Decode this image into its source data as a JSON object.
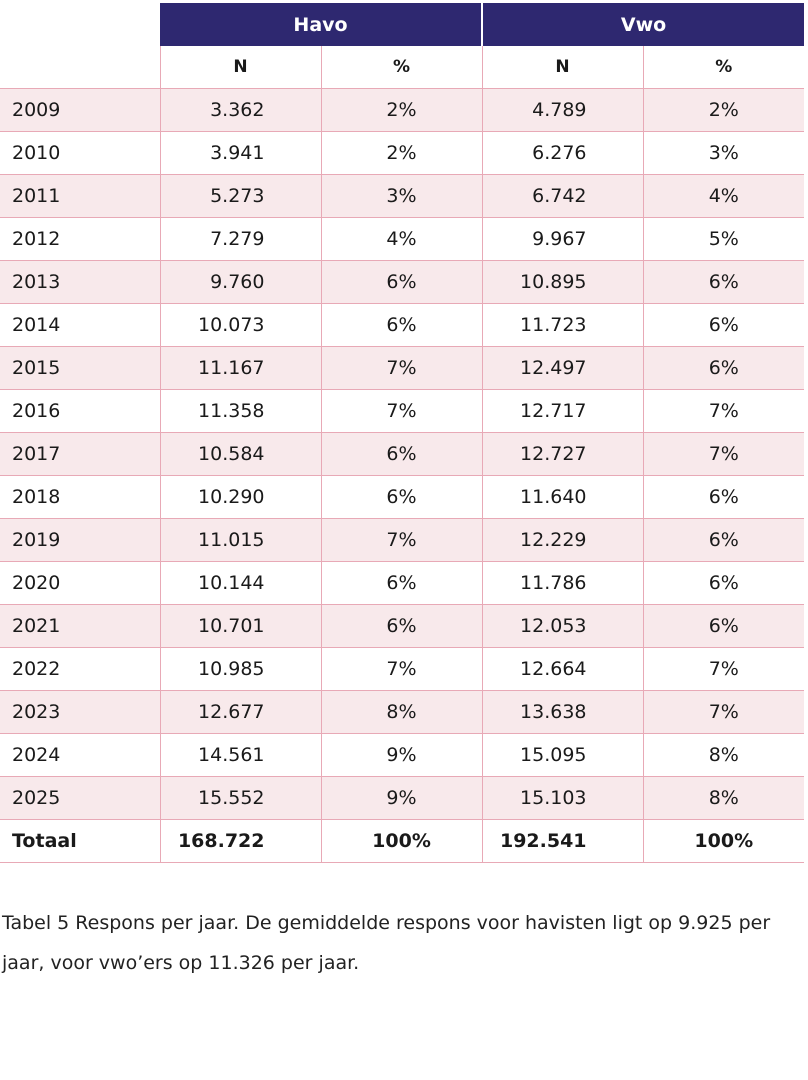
{
  "table": {
    "groups": [
      "Havo",
      "Vwo"
    ],
    "subheaders": [
      "N",
      "%",
      "N",
      "%"
    ],
    "rows": [
      {
        "year": "2009",
        "havo_n": "3.362",
        "havo_pct": "2%",
        "vwo_n": "4.789",
        "vwo_pct": "2%"
      },
      {
        "year": "2010",
        "havo_n": "3.941",
        "havo_pct": "2%",
        "vwo_n": "6.276",
        "vwo_pct": "3%"
      },
      {
        "year": "2011",
        "havo_n": "5.273",
        "havo_pct": "3%",
        "vwo_n": "6.742",
        "vwo_pct": "4%"
      },
      {
        "year": "2012",
        "havo_n": "7.279",
        "havo_pct": "4%",
        "vwo_n": "9.967",
        "vwo_pct": "5%"
      },
      {
        "year": "2013",
        "havo_n": "9.760",
        "havo_pct": "6%",
        "vwo_n": "10.895",
        "vwo_pct": "6%"
      },
      {
        "year": "2014",
        "havo_n": "10.073",
        "havo_pct": "6%",
        "vwo_n": "11.723",
        "vwo_pct": "6%"
      },
      {
        "year": "2015",
        "havo_n": "11.167",
        "havo_pct": "7%",
        "vwo_n": "12.497",
        "vwo_pct": "6%"
      },
      {
        "year": "2016",
        "havo_n": "11.358",
        "havo_pct": "7%",
        "vwo_n": "12.717",
        "vwo_pct": "7%"
      },
      {
        "year": "2017",
        "havo_n": "10.584",
        "havo_pct": "6%",
        "vwo_n": "12.727",
        "vwo_pct": "7%"
      },
      {
        "year": "2018",
        "havo_n": "10.290",
        "havo_pct": "6%",
        "vwo_n": "11.640",
        "vwo_pct": "6%"
      },
      {
        "year": "2019",
        "havo_n": "11.015",
        "havo_pct": "7%",
        "vwo_n": "12.229",
        "vwo_pct": "6%"
      },
      {
        "year": "2020",
        "havo_n": "10.144",
        "havo_pct": "6%",
        "vwo_n": "11.786",
        "vwo_pct": "6%"
      },
      {
        "year": "2021",
        "havo_n": "10.701",
        "havo_pct": "6%",
        "vwo_n": "12.053",
        "vwo_pct": "6%"
      },
      {
        "year": "2022",
        "havo_n": "10.985",
        "havo_pct": "7%",
        "vwo_n": "12.664",
        "vwo_pct": "7%"
      },
      {
        "year": "2023",
        "havo_n": "12.677",
        "havo_pct": "8%",
        "vwo_n": "13.638",
        "vwo_pct": "7%"
      },
      {
        "year": "2024",
        "havo_n": "14.561",
        "havo_pct": "9%",
        "vwo_n": "15.095",
        "vwo_pct": "8%"
      },
      {
        "year": "2025",
        "havo_n": "15.552",
        "havo_pct": "9%",
        "vwo_n": "15.103",
        "vwo_pct": "8%"
      }
    ],
    "total": {
      "year": "Totaal",
      "havo_n": "168.722",
      "havo_pct": "100%",
      "vwo_n": "192.541",
      "vwo_pct": "100%"
    }
  },
  "caption": "Tabel 5 Respons per jaar. De gemiddelde respons voor havisten ligt op 9.925 per jaar, voor vwo’ers op 11.326 per jaar.",
  "colors": {
    "header_bg": "#2e2870",
    "row_shade": "#f8e9eb",
    "rule": "#e8a9b6"
  }
}
